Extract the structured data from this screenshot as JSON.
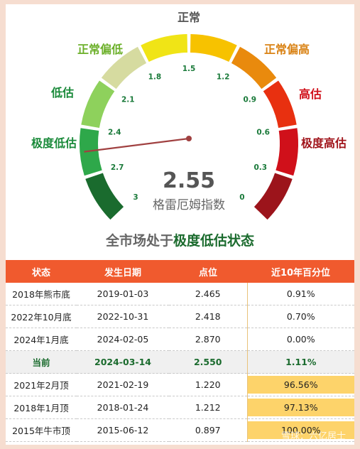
{
  "gauge": {
    "value": 2.55,
    "value_text": "2.55",
    "label": "格雷厄姆指数",
    "range": [
      0,
      3
    ],
    "ticks": [
      "3",
      "2.7",
      "2.4",
      "2.1",
      "1.8",
      "1.5",
      "1.2",
      "0.9",
      "0.6",
      "0.3",
      "0"
    ],
    "zones": [
      {
        "name": "极度低估",
        "color": "#1a6b2e"
      },
      {
        "name": "极度低估",
        "color": "#2ea84a"
      },
      {
        "name": "低估",
        "color": "#8ed15c"
      },
      {
        "name": "正常偏低",
        "color": "#d6dba0"
      },
      {
        "name": "正常",
        "color": "#f0e416"
      },
      {
        "name": "正常",
        "color": "#f7c200"
      },
      {
        "name": "正常偏高",
        "color": "#e98a0d"
      },
      {
        "name": "高估",
        "color": "#e83010"
      },
      {
        "name": "极度高估",
        "color": "#d0101a"
      },
      {
        "name": "极度高估",
        "color": "#9c141b"
      }
    ],
    "zone_labels": [
      {
        "text": "极度低估",
        "color": "#1a8a3a"
      },
      {
        "text": "低估",
        "color": "#1a8a3a"
      },
      {
        "text": "正常偏低",
        "color": "#6cb02a"
      },
      {
        "text": "正常",
        "color": "#555555"
      },
      {
        "text": "正常偏高",
        "color": "#d98214"
      },
      {
        "text": "高估",
        "color": "#d0101a"
      },
      {
        "text": "极度高估",
        "color": "#a0141b"
      }
    ],
    "needle_color": "#a04040"
  },
  "status": {
    "prefix": "全市场处于",
    "highlight": "极度低估状态"
  },
  "table": {
    "headers": [
      "状态",
      "发生日期",
      "点位",
      "近10年百分位"
    ],
    "rows": [
      {
        "state": "2018年熊市底",
        "date": "2019-01-03",
        "point": "2.465",
        "pct": "0.91%",
        "pct_value": 0.91,
        "current": false
      },
      {
        "state": "2022年10月底",
        "date": "2022-10-31",
        "point": "2.418",
        "pct": "0.70%",
        "pct_value": 0.7,
        "current": false
      },
      {
        "state": "2024年1月底",
        "date": "2024-02-05",
        "point": "2.870",
        "pct": "0.00%",
        "pct_value": 0.0,
        "current": false
      },
      {
        "state": "当前",
        "date": "2024-03-14",
        "point": "2.550",
        "pct": "1.11%",
        "pct_value": 1.11,
        "current": true
      },
      {
        "state": "2021年2月顶",
        "date": "2021-02-19",
        "point": "1.220",
        "pct": "96.56%",
        "pct_value": 96.56,
        "current": false
      },
      {
        "state": "2018年1月顶",
        "date": "2018-01-24",
        "point": "1.212",
        "pct": "97.13%",
        "pct_value": 97.13,
        "current": false
      },
      {
        "state": "2015年牛市顶",
        "date": "2015-06-12",
        "point": "0.897",
        "pct": "100.00%",
        "pct_value": 100.0,
        "current": false
      }
    ],
    "bar_color": "#fdd36a"
  },
  "watermark": "雪球：六亿居士",
  "chart_data": {
    "type": "table",
    "title": "全市场处于极度低估状态",
    "gauge_value": 2.55,
    "gauge_label": "格雷厄姆指数",
    "columns": [
      "状态",
      "发生日期",
      "点位",
      "近10年百分位"
    ],
    "rows": [
      [
        "2018年熊市底",
        "2019-01-03",
        2.465,
        0.91
      ],
      [
        "2022年10月底",
        "2022-10-31",
        2.418,
        0.7
      ],
      [
        "2024年1月底",
        "2024-02-05",
        2.87,
        0.0
      ],
      [
        "当前",
        "2024-03-14",
        2.55,
        1.11
      ],
      [
        "2021年2月顶",
        "2021-02-19",
        1.22,
        96.56
      ],
      [
        "2018年1月顶",
        "2018-01-24",
        1.212,
        97.13
      ],
      [
        "2015年牛市顶",
        "2015-06-12",
        0.897,
        100.0
      ]
    ]
  }
}
